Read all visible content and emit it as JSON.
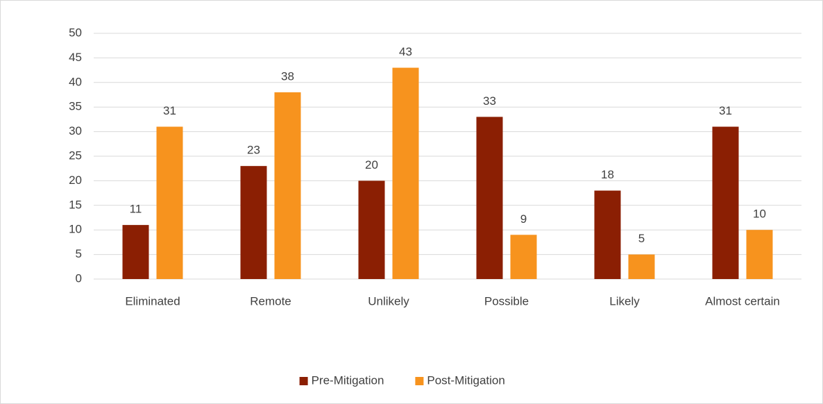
{
  "chart_data": {
    "type": "bar",
    "categories": [
      "Eliminated",
      "Remote",
      "Unlikely",
      "Possible",
      "Likely",
      "Almost certain"
    ],
    "series": [
      {
        "name": "Pre-Mitigation",
        "color": "#8b1f03",
        "values": [
          11,
          23,
          20,
          33,
          18,
          31
        ]
      },
      {
        "name": "Post-Mitigation",
        "color": "#f7931e",
        "values": [
          31,
          38,
          43,
          9,
          5,
          10
        ]
      }
    ],
    "ylim": [
      0,
      50
    ],
    "yticks": [
      0,
      5,
      10,
      15,
      20,
      25,
      30,
      35,
      40,
      45,
      50
    ],
    "grid": true,
    "legend": "bottom"
  }
}
